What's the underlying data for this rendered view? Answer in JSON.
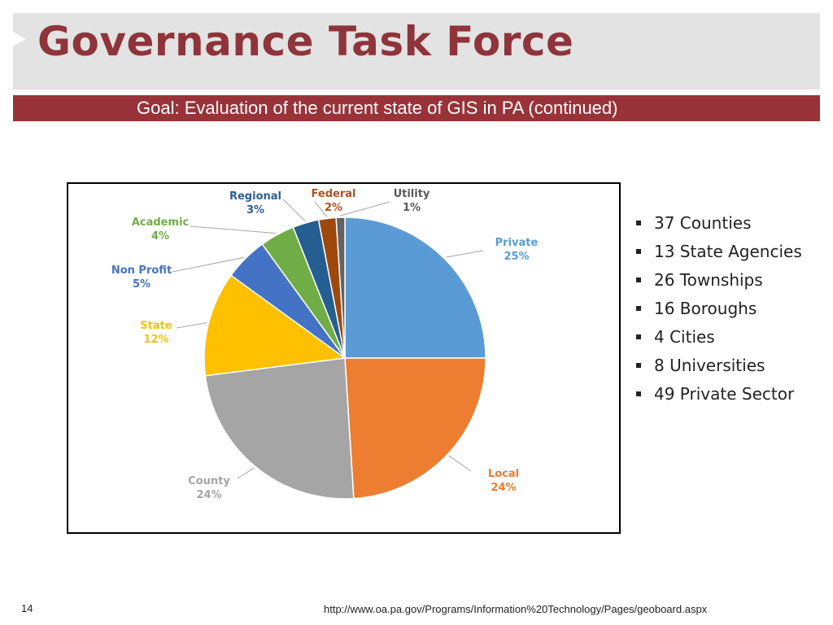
{
  "header": {
    "title": "Governance Task Force",
    "subtitle": "Goal: Evaluation of the current state of GIS in PA (continued)"
  },
  "chart_data": {
    "type": "pie",
    "slices": [
      {
        "name": "Private",
        "value": 25,
        "label": "25%",
        "color": "#5b9bd5"
      },
      {
        "name": "Local",
        "value": 24,
        "label": "24%",
        "color": "#ed7d31"
      },
      {
        "name": "County",
        "value": 24,
        "label": "24%",
        "color": "#a5a5a5"
      },
      {
        "name": "State",
        "value": 12,
        "label": "12%",
        "color": "#ffc000"
      },
      {
        "name": "Non Profit",
        "value": 5,
        "label": "5%",
        "color": "#4472c4"
      },
      {
        "name": "Academic",
        "value": 4,
        "label": "4%",
        "color": "#70ad47"
      },
      {
        "name": "Regional",
        "value": 3,
        "label": "3%",
        "color": "#255e91"
      },
      {
        "name": "Federal",
        "value": 2,
        "label": "2%",
        "color": "#9e480e"
      },
      {
        "name": "Utility",
        "value": 1,
        "label": "1%",
        "color": "#636363"
      }
    ]
  },
  "bullets": [
    "37 Counties",
    "13 State Agencies",
    "26 Townships",
    "16 Boroughs",
    "4 Cities",
    "8 Universities",
    "49 Private Sector"
  ],
  "footer": {
    "page_number": "14",
    "source_url": "http://www.oa.pa.gov/Programs/Information%20Technology/Pages/geoboard.aspx"
  }
}
